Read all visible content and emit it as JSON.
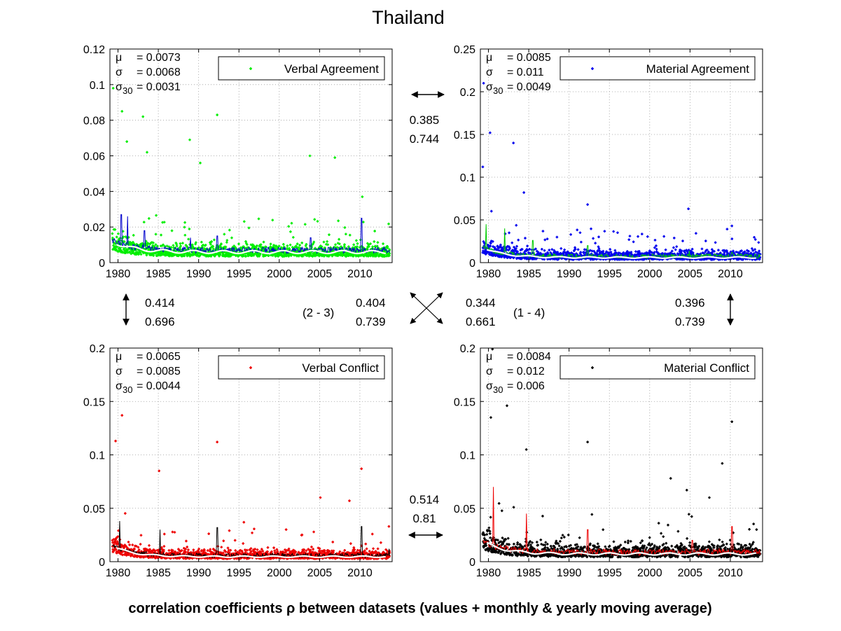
{
  "figure": {
    "title": "Thailand",
    "footer": "correlation coefficients ρ between datasets (values + monthly & yearly moving average)"
  },
  "chart_data": [
    {
      "type": "scatter",
      "panel": "top-left",
      "legend": "Verbal Agreement",
      "legend_placement": "top-right",
      "point_color": "#00ee00",
      "monthly_ma_color": "#0000cc",
      "yearly_ma_color": "#ffffff",
      "stats": {
        "mu": "= 0.0073",
        "sigma": "= 0.0068",
        "sigma30": "= 0.0031"
      },
      "xlim": [
        1979,
        2014
      ],
      "ylim": [
        0,
        0.12
      ],
      "xticks": [
        "1980",
        "1985",
        "1990",
        "1995",
        "2000",
        "2005",
        "2010"
      ],
      "yticks": [
        "0",
        "0.02",
        "0.04",
        "0.06",
        "0.08",
        "0.1",
        "0.12"
      ],
      "grid": true,
      "base": 0.007,
      "spread": 0.0068,
      "decay": 0.006,
      "peaks": [
        [
          1979.4,
          0.098
        ],
        [
          1980.5,
          0.085
        ],
        [
          1981.1,
          0.068
        ],
        [
          1983.1,
          0.082
        ],
        [
          1983.6,
          0.062
        ],
        [
          1988.9,
          0.069
        ],
        [
          1992.3,
          0.083
        ],
        [
          1990.2,
          0.056
        ],
        [
          2003.8,
          0.06
        ],
        [
          2006.9,
          0.059
        ],
        [
          2010.3,
          0.037
        ]
      ],
      "ma_peaks": [
        [
          1980.4,
          0.027
        ],
        [
          1981.2,
          0.026
        ],
        [
          1983.3,
          0.018
        ],
        [
          1989.0,
          0.014
        ],
        [
          1992.3,
          0.015
        ],
        [
          2003.9,
          0.014
        ],
        [
          2010.2,
          0.025
        ]
      ],
      "seed": 11
    },
    {
      "type": "scatter",
      "panel": "top-right",
      "legend": "Material Agreement",
      "legend_placement": "top-right",
      "point_color": "#0000ee",
      "monthly_ma_color": "#00cc00",
      "yearly_ma_color": "#ffffff",
      "stats": {
        "mu": "= 0.0085",
        "sigma": "= 0.011",
        "sigma30": "= 0.0049"
      },
      "xlim": [
        1979,
        2014
      ],
      "ylim": [
        0,
        0.25
      ],
      "xticks": [
        "1980",
        "1985",
        "1990",
        "1995",
        "2000",
        "2005",
        "2010"
      ],
      "yticks": [
        "0",
        "0.05",
        "0.1",
        "0.15",
        "0.2",
        "0.25"
      ],
      "grid": true,
      "base": 0.007,
      "spread": 0.011,
      "decay": 0.012,
      "peaks": [
        [
          1979.4,
          0.21
        ],
        [
          1980.2,
          0.152
        ],
        [
          1983.1,
          0.14
        ],
        [
          1979.3,
          0.112
        ],
        [
          1984.4,
          0.082
        ],
        [
          1992.3,
          0.068
        ],
        [
          2004.8,
          0.063
        ],
        [
          2010.2,
          0.043
        ]
      ],
      "ma_peaks": [
        [
          1979.7,
          0.045
        ],
        [
          1982.0,
          0.04
        ],
        [
          1985.5,
          0.026
        ],
        [
          1992.3,
          0.02
        ],
        [
          2004.9,
          0.014
        ],
        [
          2010.2,
          0.012
        ]
      ],
      "seed": 23
    },
    {
      "type": "scatter",
      "panel": "bottom-left",
      "legend": "Verbal Conflict",
      "legend_placement": "top-right",
      "point_color": "#ee0000",
      "monthly_ma_color": "#000000",
      "yearly_ma_color": "#ffffff",
      "stats": {
        "mu": "= 0.0065",
        "sigma": "= 0.0085",
        "sigma30": "= 0.0044"
      },
      "xlim": [
        1979,
        2014
      ],
      "ylim": [
        0,
        0.2
      ],
      "xticks": [
        "1980",
        "1985",
        "1990",
        "1995",
        "2000",
        "2005",
        "2010"
      ],
      "yticks": [
        "0",
        "0.05",
        "0.1",
        "0.15",
        "0.2"
      ],
      "grid": true,
      "base": 0.0055,
      "spread": 0.0085,
      "decay": 0.01,
      "peaks": [
        [
          1980.5,
          0.137
        ],
        [
          1979.7,
          0.113
        ],
        [
          1992.3,
          0.112
        ],
        [
          1985.1,
          0.085
        ],
        [
          2010.2,
          0.087
        ],
        [
          2005.1,
          0.06
        ],
        [
          2008.7,
          0.057
        ],
        [
          2013.6,
          0.033
        ]
      ],
      "ma_peaks": [
        [
          1980.2,
          0.038
        ],
        [
          1985.2,
          0.03
        ],
        [
          1992.3,
          0.032
        ],
        [
          2010.2,
          0.033
        ],
        [
          2013.6,
          0.012
        ]
      ],
      "seed": 37
    },
    {
      "type": "scatter",
      "panel": "bottom-right",
      "legend": "Material Conflict",
      "legend_placement": "top-right",
      "point_color": "#000000",
      "monthly_ma_color": "#ee0000",
      "yearly_ma_color": "#ffffff",
      "stats": {
        "mu": "= 0.0084",
        "sigma": "= 0.012",
        "sigma30": "= 0.006"
      },
      "xlim": [
        1979,
        2014
      ],
      "ylim": [
        0,
        0.2
      ],
      "xticks": [
        "1980",
        "1985",
        "1990",
        "1995",
        "2000",
        "2005",
        "2010"
      ],
      "yticks": [
        "0",
        "0.05",
        "0.1",
        "0.15",
        "0.2"
      ],
      "grid": true,
      "base": 0.0085,
      "spread": 0.012,
      "decay": 0.012,
      "peaks": [
        [
          1980.5,
          0.199
        ],
        [
          1982.3,
          0.146
        ],
        [
          1980.3,
          0.135
        ],
        [
          1984.7,
          0.105
        ],
        [
          1992.3,
          0.112
        ],
        [
          2010.2,
          0.131
        ],
        [
          2009.0,
          0.092
        ],
        [
          2004.6,
          0.067
        ],
        [
          2002.6,
          0.078
        ],
        [
          2007.4,
          0.06
        ]
      ],
      "ma_peaks": [
        [
          1980.6,
          0.07
        ],
        [
          1984.7,
          0.045
        ],
        [
          1992.3,
          0.03
        ],
        [
          2010.2,
          0.033
        ],
        [
          2005.3,
          0.02
        ]
      ],
      "seed": 53
    }
  ],
  "correlations": {
    "top": {
      "values": [
        "0.385",
        "0.744"
      ]
    },
    "bottom": {
      "values": [
        "0.514",
        "0.81"
      ]
    },
    "left": {
      "values": [
        "0.414",
        "0.696"
      ]
    },
    "right": {
      "values": [
        "0.396",
        "0.739"
      ]
    },
    "diag_2_3": {
      "label": "(2 - 3)",
      "values": [
        "0.404",
        "0.739"
      ]
    },
    "diag_1_4": {
      "label": "(1 - 4)",
      "values": [
        "0.344",
        "0.661"
      ]
    }
  }
}
